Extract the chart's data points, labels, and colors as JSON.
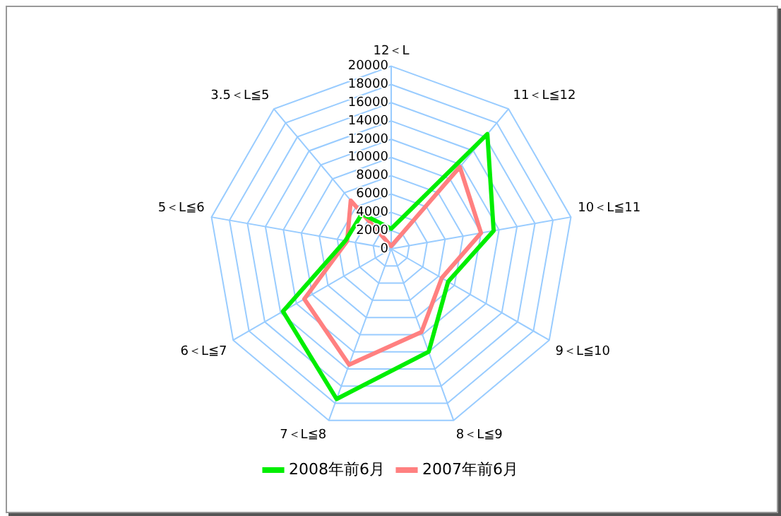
{
  "chart_data": {
    "type": "radar",
    "categories": [
      "12＜L",
      "11＜L≦12",
      "10＜L≦11",
      "9＜L≦10",
      "8＜L≦9",
      "7＜L≦8",
      "6＜L≦7",
      "5＜L≦6",
      "3.5＜L≦5"
    ],
    "series": [
      {
        "name": "2008年前6月",
        "color": "#00ee00",
        "values": [
          2200,
          16400,
          11400,
          7200,
          12000,
          17500,
          13700,
          5100,
          5000
        ]
      },
      {
        "name": "2007年前6月",
        "color": "#ff8080",
        "values": [
          300,
          11700,
          10000,
          6400,
          9700,
          13500,
          11000,
          4900,
          6900
        ]
      }
    ],
    "ylim": [
      0,
      20000
    ],
    "yticks": [
      0,
      2000,
      4000,
      6000,
      8000,
      10000,
      12000,
      14000,
      16000,
      18000,
      20000
    ],
    "grid": true,
    "legend": "bottom",
    "marker": "none",
    "line_style": "solid"
  }
}
